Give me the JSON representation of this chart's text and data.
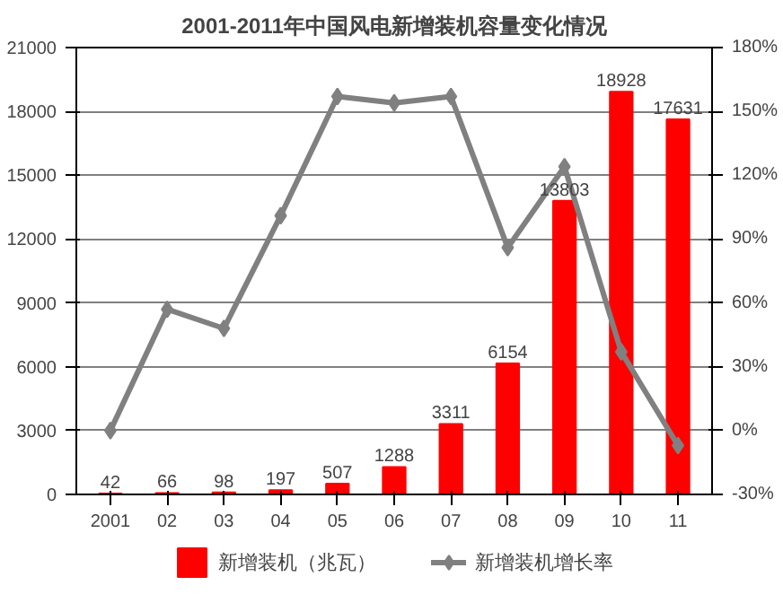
{
  "chart_data": {
    "type": "bar",
    "title": "2001-2011年中国风电新增装机容量变化情况",
    "categories": [
      "2001",
      "02",
      "03",
      "04",
      "05",
      "06",
      "07",
      "08",
      "09",
      "10",
      "11"
    ],
    "series": [
      {
        "name": "新增装机（兆瓦）",
        "color": "#ff0000",
        "data_labels": true,
        "values": [
          42,
          66,
          98,
          197,
          507,
          1288,
          3311,
          6154,
          13803,
          18928,
          17631
        ]
      },
      {
        "name": "新增装机增长率",
        "color": "#808080",
        "type": "line",
        "axis": "y2",
        "marker": "diamond",
        "values": [
          0,
          57,
          48,
          101,
          157,
          154,
          157,
          86,
          124,
          37,
          -7
        ]
      }
    ],
    "ylim": [
      0,
      21000
    ],
    "yticks": [
      0,
      3000,
      6000,
      9000,
      12000,
      15000,
      18000,
      21000
    ],
    "y2lim": [
      -30,
      180
    ],
    "y2ticks": [
      {
        "value": -30,
        "label": "-30%"
      },
      {
        "value": 0,
        "label": "0%"
      },
      {
        "value": 30,
        "label": "30%"
      },
      {
        "value": 60,
        "label": "60%"
      },
      {
        "value": 90,
        "label": "90%"
      },
      {
        "value": 120,
        "label": "120%"
      },
      {
        "value": 150,
        "label": "150%"
      },
      {
        "value": 180,
        "label": "180%"
      }
    ],
    "grid": "y",
    "legend": "bottom"
  }
}
